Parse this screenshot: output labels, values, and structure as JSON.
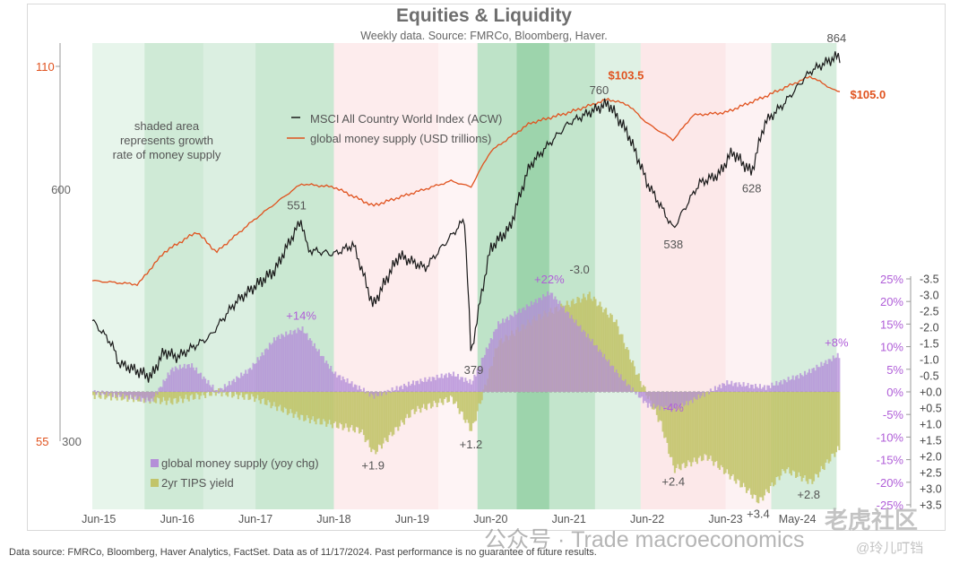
{
  "title": "Equities & Liquidity",
  "subtitle": "Weekly data.  Source: FMRCo, Bloomberg, Haver.",
  "footer": "Data source: FMRCo, Bloomberg, Haver Analytics, FactSet. Data as of 11/17/2024. Past performance is no guarantee of future results.",
  "watermark": "公众号 · Trade macroeconomics",
  "watermark_brand": "老虎社区",
  "watermark_handle": "@玲儿叮铛",
  "chart_data": {
    "type": "line",
    "x_range": [
      "2015-05",
      "2024-11"
    ],
    "x_ticks": [
      "Jun-15",
      "Jun-16",
      "Jun-17",
      "Jun-18",
      "Jun-19",
      "Jun-20",
      "Jun-21",
      "Jun-22",
      "Jun-23",
      "May-24"
    ],
    "shading_note": "shaded area represents growth rate of money supply",
    "top_panel": {
      "left_axis_red": {
        "scale": "log",
        "ticks": [
          "110",
          "55"
        ],
        "series": "global money supply (USD trillions)"
      },
      "left_axis_gray": {
        "scale": "log",
        "ticks": [
          "600",
          "300"
        ],
        "series": "MSCI All Country World Index (ACW)"
      },
      "series": [
        {
          "name": "MSCI All Country World Index (ACW)",
          "color": "#1a1a1a",
          "points": [
            [
              "2015-05",
              418
            ],
            [
              "2015-08",
              392
            ],
            [
              "2015-09",
              372
            ],
            [
              "2016-02",
              358
            ],
            [
              "2016-04",
              384
            ],
            [
              "2016-06",
              378
            ],
            [
              "2016-11",
              400
            ],
            [
              "2017-03",
              440
            ],
            [
              "2017-09",
              480
            ],
            [
              "2018-01",
              551
            ],
            [
              "2018-02",
              508
            ],
            [
              "2018-06",
              502
            ],
            [
              "2018-09",
              515
            ],
            [
              "2018-12",
              435
            ],
            [
              "2019-04",
              500
            ],
            [
              "2019-08",
              483
            ],
            [
              "2019-12",
              528
            ],
            [
              "2020-02",
              552
            ],
            [
              "2020-03",
              379
            ],
            [
              "2020-06",
              510
            ],
            [
              "2020-09",
              540
            ],
            [
              "2020-12",
              640
            ],
            [
              "2021-06",
              720
            ],
            [
              "2021-12",
              760
            ],
            [
              "2022-03",
              700
            ],
            [
              "2022-06",
              610
            ],
            [
              "2022-10",
              538
            ],
            [
              "2023-02",
              610
            ],
            [
              "2023-05",
              625
            ],
            [
              "2023-07",
              665
            ],
            [
              "2023-10",
              628
            ],
            [
              "2023-12",
              720
            ],
            [
              "2024-03",
              760
            ],
            [
              "2024-07",
              830
            ],
            [
              "2024-11",
              864
            ]
          ],
          "labels": [
            {
              "x": "2018-01",
              "text": "551"
            },
            {
              "x": "2020-03",
              "text": "379"
            },
            {
              "x": "2021-12",
              "text": "760"
            },
            {
              "x": "2022-10",
              "text": "538"
            },
            {
              "x": "2023-10",
              "text": "628"
            },
            {
              "x": "2024-11",
              "text": "864"
            }
          ]
        },
        {
          "name": "global money supply (USD trillions)",
          "color": "#e0521e",
          "points": [
            [
              "2015-05",
              74
            ],
            [
              "2015-12",
              73.5
            ],
            [
              "2016-04",
              78
            ],
            [
              "2016-09",
              81
            ],
            [
              "2016-12",
              78
            ],
            [
              "2017-06",
              83
            ],
            [
              "2018-01",
              88.5
            ],
            [
              "2018-06",
              88
            ],
            [
              "2018-12",
              85
            ],
            [
              "2019-06",
              87
            ],
            [
              "2019-12",
              89
            ],
            [
              "2020-03",
              88
            ],
            [
              "2020-06",
              94
            ],
            [
              "2020-12",
              99
            ],
            [
              "2021-06",
              101
            ],
            [
              "2021-12",
              103.5
            ],
            [
              "2022-03",
              102.5
            ],
            [
              "2022-06",
              99
            ],
            [
              "2022-10",
              96
            ],
            [
              "2023-01",
              100.5
            ],
            [
              "2023-06",
              101
            ],
            [
              "2023-12",
              104
            ],
            [
              "2024-07",
              108
            ],
            [
              "2024-11",
              105
            ]
          ],
          "labels": [
            {
              "x": "2021-12",
              "text": "$103.5"
            },
            {
              "x": "2024-11",
              "text": "$105.0"
            }
          ]
        }
      ]
    },
    "bottom_panel": {
      "right_axis_purple": {
        "name": "global money supply (yoy chg)",
        "ticks": [
          "25%",
          "20%",
          "15%",
          "10%",
          "5%",
          "0%",
          "-5%",
          "-10%",
          "-15%",
          "-20%",
          "-25%"
        ],
        "range": [
          -25,
          25
        ]
      },
      "right_axis_black": {
        "name": "2yr TIPS yield (inverted)",
        "ticks": [
          "-3.5",
          "-3.0",
          "-2.5",
          "-2.0",
          "-1.5",
          "-1.0",
          "-0.5",
          "+0.0",
          "+0.5",
          "+1.0",
          "+1.5",
          "+2.0",
          "+2.5",
          "+3.0",
          "+3.5"
        ],
        "range": [
          -3.5,
          3.5
        ]
      },
      "series": [
        {
          "name": "global money supply (yoy chg)",
          "color": "#b48fd8",
          "unit": "%",
          "points": [
            [
              "2015-05",
              0
            ],
            [
              "2015-10",
              -1
            ],
            [
              "2016-02",
              -2
            ],
            [
              "2016-05",
              5
            ],
            [
              "2016-08",
              6
            ],
            [
              "2016-12",
              0
            ],
            [
              "2017-05",
              5
            ],
            [
              "2017-09",
              12
            ],
            [
              "2018-01",
              14
            ],
            [
              "2018-06",
              4
            ],
            [
              "2018-12",
              -1
            ],
            [
              "2019-06",
              2
            ],
            [
              "2019-12",
              4
            ],
            [
              "2020-03",
              2
            ],
            [
              "2020-07",
              15
            ],
            [
              "2021-03",
              22
            ],
            [
              "2021-09",
              12
            ],
            [
              "2022-02",
              3
            ],
            [
              "2022-06",
              -3
            ],
            [
              "2022-10",
              -4
            ],
            [
              "2023-02",
              -1
            ],
            [
              "2023-06",
              2
            ],
            [
              "2023-12",
              1
            ],
            [
              "2024-06",
              4
            ],
            [
              "2024-11",
              8
            ]
          ],
          "labels": [
            {
              "x": "2018-01",
              "text": "+14%"
            },
            {
              "x": "2021-03",
              "text": "+22%"
            },
            {
              "x": "2022-10",
              "text": "-4%"
            },
            {
              "x": "2024-11",
              "text": "+8%"
            }
          ]
        },
        {
          "name": "2yr TIPS yield",
          "color": "#c2c46a",
          "unit": "%",
          "points": [
            [
              "2015-05",
              0.1
            ],
            [
              "2016-05",
              0.3
            ],
            [
              "2016-12",
              0.0
            ],
            [
              "2017-06",
              0.2
            ],
            [
              "2018-01",
              0.8
            ],
            [
              "2018-10",
              1.2
            ],
            [
              "2018-12",
              1.9
            ],
            [
              "2019-06",
              0.6
            ],
            [
              "2019-12",
              0.2
            ],
            [
              "2020-03",
              1.2
            ],
            [
              "2020-07",
              -1.5
            ],
            [
              "2021-01",
              -2.3
            ],
            [
              "2021-09",
              -3.0
            ],
            [
              "2022-01",
              -2.2
            ],
            [
              "2022-04",
              -0.7
            ],
            [
              "2022-08",
              1.0
            ],
            [
              "2022-10",
              2.4
            ],
            [
              "2023-03",
              2.0
            ],
            [
              "2023-09",
              3.0
            ],
            [
              "2023-11",
              3.4
            ],
            [
              "2024-03",
              2.4
            ],
            [
              "2024-07",
              2.8
            ],
            [
              "2024-11",
              1.8
            ]
          ],
          "labels": [
            {
              "x": "2018-12",
              "text": "+1.9"
            },
            {
              "x": "2020-03",
              "text": "+1.2"
            },
            {
              "x": "2021-09",
              "text": "-3.0"
            },
            {
              "x": "2022-10",
              "text": "+2.4"
            },
            {
              "x": "2023-11",
              "text": "+3.4"
            },
            {
              "x": "2024-07",
              "text": "+2.8"
            }
          ]
        }
      ]
    },
    "background_shading": [
      {
        "from": "2015-05",
        "to": "2016-01",
        "level": 0.1
      },
      {
        "from": "2016-01",
        "to": "2016-10",
        "level": 0.4
      },
      {
        "from": "2016-10",
        "to": "2017-06",
        "level": 0.25
      },
      {
        "from": "2017-06",
        "to": "2018-06",
        "level": 0.45
      },
      {
        "from": "2018-06",
        "to": "2019-10",
        "level": -0.35
      },
      {
        "from": "2019-10",
        "to": "2020-04",
        "level": -0.1
      },
      {
        "from": "2020-04",
        "to": "2020-10",
        "level": 0.6
      },
      {
        "from": "2020-10",
        "to": "2021-03",
        "level": 1.0
      },
      {
        "from": "2021-03",
        "to": "2021-10",
        "level": 0.55
      },
      {
        "from": "2021-10",
        "to": "2022-05",
        "level": 0.2
      },
      {
        "from": "2022-05",
        "to": "2023-06",
        "level": -0.5
      },
      {
        "from": "2023-06",
        "to": "2024-01",
        "level": -0.15
      },
      {
        "from": "2024-01",
        "to": "2024-11",
        "level": 0.3
      }
    ]
  }
}
